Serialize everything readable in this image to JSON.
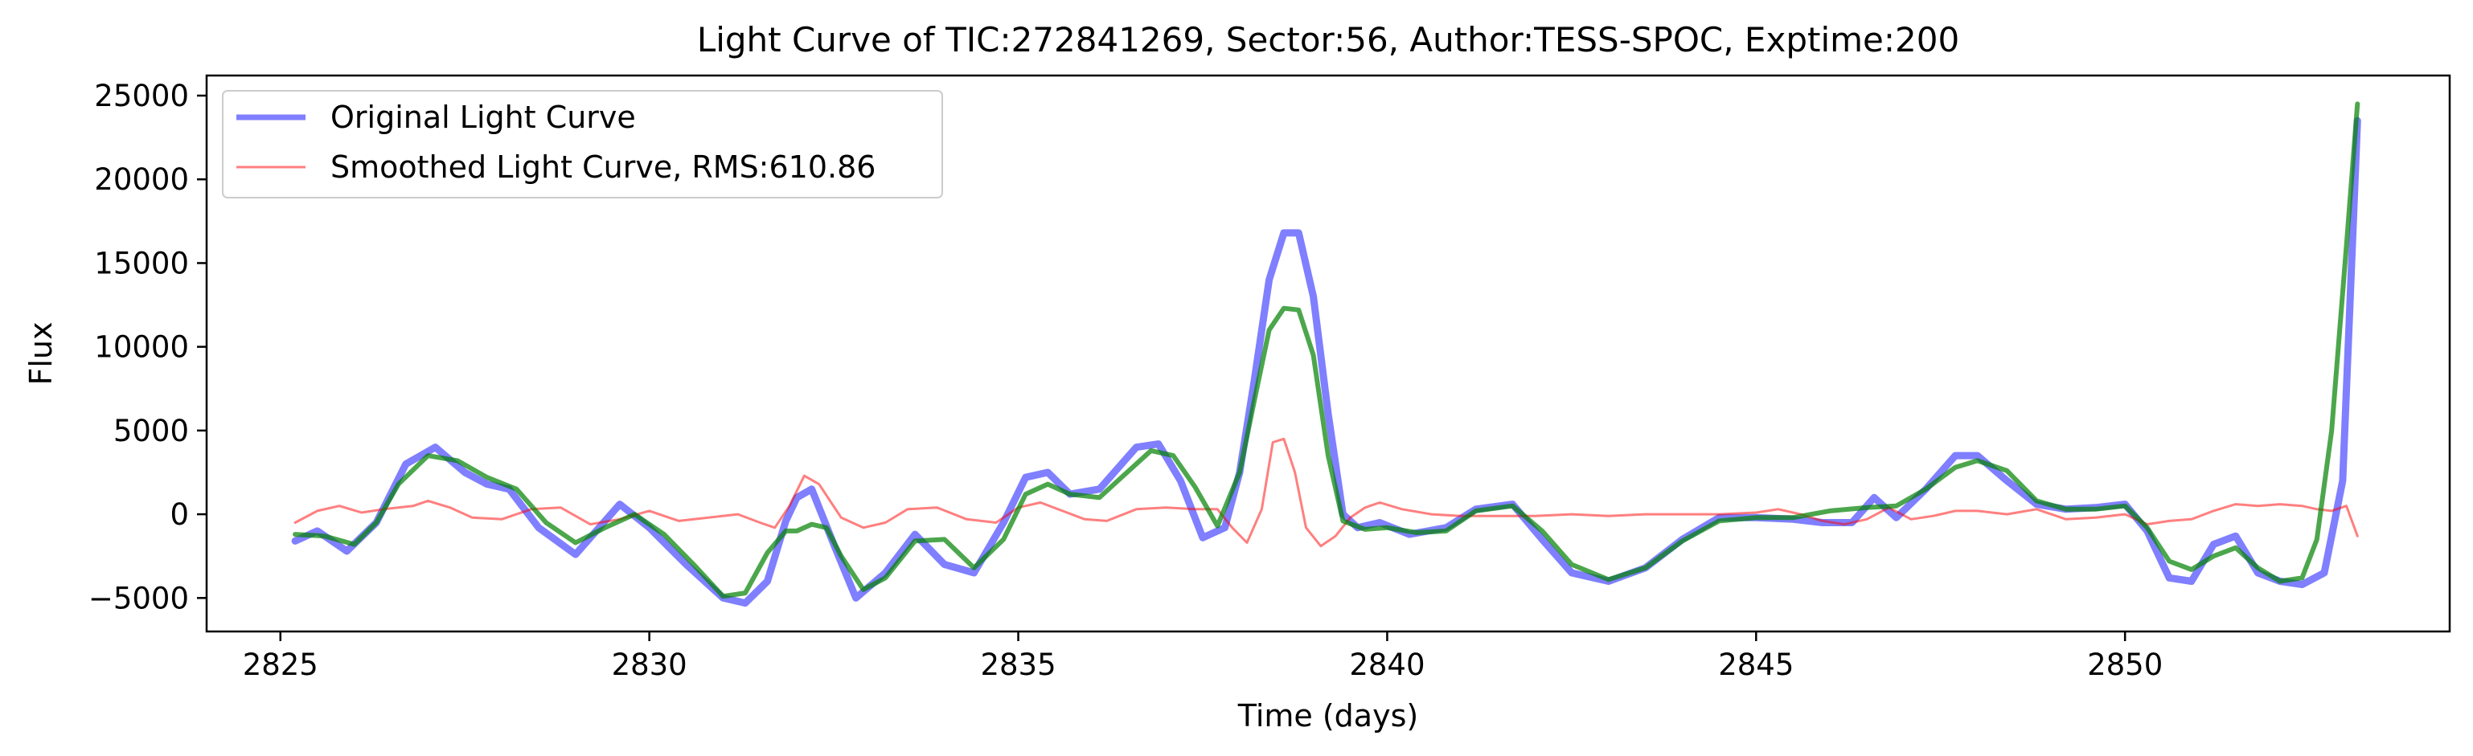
{
  "chart_data": {
    "type": "line",
    "title": "Light Curve of TIC:272841269, Sector:56, Author:TESS-SPOC, Exptime:200",
    "xlabel": "Time (days)",
    "ylabel": "Flux",
    "xlim": [
      2824.0,
      2854.4
    ],
    "ylim": [
      -7000,
      26200
    ],
    "grid": false,
    "legend_position": "top-left",
    "x_ticks": [
      2825,
      2830,
      2835,
      2840,
      2845,
      2850
    ],
    "x_tick_labels": [
      "2825",
      "2830",
      "2835",
      "2840",
      "2845",
      "2850"
    ],
    "y_ticks": [
      -5000,
      0,
      5000,
      10000,
      15000,
      20000,
      25000
    ],
    "y_tick_labels": [
      "−5000",
      "0",
      "5000",
      "10000",
      "15000",
      "20000",
      "25000"
    ],
    "series": [
      {
        "name": "Original Light Curve",
        "color": "#0000ff",
        "alpha": 0.5,
        "x": [
          2825.2,
          2825.5,
          2825.9,
          2826.3,
          2826.7,
          2827.1,
          2827.5,
          2827.8,
          2828.1,
          2828.5,
          2829.0,
          2829.6,
          2830.0,
          2830.5,
          2831.0,
          2831.3,
          2831.6,
          2831.85,
          2832.0,
          2832.2,
          2832.5,
          2832.8,
          2833.2,
          2833.6,
          2834.0,
          2834.4,
          2834.8,
          2835.1,
          2835.4,
          2835.7,
          2836.1,
          2836.6,
          2836.9,
          2837.2,
          2837.5,
          2837.8,
          2838.0,
          2838.2,
          2838.4,
          2838.6,
          2838.8,
          2839.0,
          2839.2,
          2839.4,
          2839.6,
          2839.9,
          2840.3,
          2840.8,
          2841.2,
          2841.7,
          2842.1,
          2842.5,
          2843.0,
          2843.5,
          2844.0,
          2844.5,
          2845.0,
          2845.5,
          2845.9,
          2846.3,
          2846.6,
          2846.9,
          2847.3,
          2847.7,
          2848.0,
          2848.4,
          2848.8,
          2849.2,
          2849.6,
          2850.0,
          2850.3,
          2850.6,
          2850.9,
          2851.2,
          2851.5,
          2851.8,
          2852.1,
          2852.4,
          2852.7,
          2852.95,
          2853.15
        ],
        "values": [
          -1600,
          -1000,
          -2200,
          -500,
          3000,
          4000,
          2500,
          1800,
          1500,
          -800,
          -2400,
          600,
          -800,
          -3000,
          -5000,
          -5300,
          -4000,
          -400,
          1000,
          1500,
          -1800,
          -5000,
          -3500,
          -1200,
          -3000,
          -3500,
          -500,
          2200,
          2500,
          1200,
          1500,
          4000,
          4200,
          2000,
          -1400,
          -800,
          2500,
          8000,
          14000,
          16800,
          16800,
          13000,
          6000,
          0,
          -800,
          -500,
          -1200,
          -800,
          300,
          600,
          -1500,
          -3500,
          -4000,
          -3200,
          -1500,
          -200,
          -200,
          -300,
          -500,
          -500,
          1000,
          -200,
          1500,
          3500,
          3500,
          2000,
          600,
          300,
          400,
          600,
          -1000,
          -3800,
          -4000,
          -1800,
          -1300,
          -3500,
          -4000,
          -4200,
          -3500,
          2000,
          23500
        ]
      },
      {
        "name": "Smoothed Light Curve, RMS:610.86",
        "color": "#ff0000",
        "alpha": 0.5,
        "x": [
          2825.2,
          2825.5,
          2825.8,
          2826.1,
          2826.4,
          2826.8,
          2827.0,
          2827.3,
          2827.6,
          2828.0,
          2828.4,
          2828.8,
          2829.2,
          2829.6,
          2830.0,
          2830.4,
          2830.8,
          2831.2,
          2831.5,
          2831.7,
          2831.9,
          2832.1,
          2832.3,
          2832.6,
          2832.9,
          2833.2,
          2833.5,
          2833.9,
          2834.3,
          2834.7,
          2835.0,
          2835.3,
          2835.6,
          2835.9,
          2836.2,
          2836.6,
          2837.0,
          2837.4,
          2837.7,
          2837.9,
          2838.1,
          2838.3,
          2838.45,
          2838.6,
          2838.75,
          2838.9,
          2839.1,
          2839.3,
          2839.5,
          2839.7,
          2839.9,
          2840.2,
          2840.6,
          2841.0,
          2841.5,
          2842.0,
          2842.5,
          2843.0,
          2843.5,
          2844.0,
          2844.5,
          2845.0,
          2845.3,
          2845.6,
          2845.9,
          2846.2,
          2846.5,
          2846.8,
          2847.1,
          2847.4,
          2847.7,
          2848.0,
          2848.4,
          2848.8,
          2849.2,
          2849.6,
          2850.0,
          2850.3,
          2850.6,
          2850.9,
          2851.2,
          2851.5,
          2851.8,
          2852.1,
          2852.4,
          2852.6,
          2852.8,
          2853.0,
          2853.15
        ],
        "values": [
          -500,
          200,
          500,
          100,
          300,
          500,
          800,
          400,
          -200,
          -300,
          300,
          400,
          -600,
          -300,
          200,
          -400,
          -200,
          0,
          -500,
          -800,
          500,
          2300,
          1800,
          -200,
          -800,
          -500,
          300,
          400,
          -300,
          -500,
          400,
          700,
          200,
          -300,
          -400,
          300,
          400,
          300,
          300,
          -800,
          -1700,
          300,
          4300,
          4500,
          2500,
          -800,
          -1900,
          -1300,
          -200,
          400,
          700,
          300,
          0,
          -100,
          -100,
          -100,
          0,
          -100,
          0,
          0,
          0,
          100,
          300,
          0,
          -400,
          -600,
          -300,
          400,
          -300,
          -100,
          200,
          200,
          0,
          300,
          -300,
          -200,
          0,
          -600,
          -400,
          -300,
          200,
          600,
          500,
          600,
          500,
          300,
          200,
          500,
          -1300
        ]
      },
      {
        "name": "",
        "color": "#008000",
        "alpha": 0.7,
        "x": [
          2825.2,
          2825.6,
          2826.0,
          2826.3,
          2826.6,
          2827.0,
          2827.4,
          2827.8,
          2828.2,
          2828.6,
          2829.0,
          2829.4,
          2829.8,
          2830.2,
          2830.6,
          2831.0,
          2831.3,
          2831.6,
          2831.85,
          2832.0,
          2832.2,
          2832.4,
          2832.6,
          2832.9,
          2833.2,
          2833.6,
          2834.0,
          2834.4,
          2834.8,
          2835.1,
          2835.4,
          2835.7,
          2836.1,
          2836.4,
          2836.8,
          2837.1,
          2837.4,
          2837.7,
          2838.0,
          2838.2,
          2838.4,
          2838.6,
          2838.8,
          2839.0,
          2839.2,
          2839.4,
          2839.7,
          2840.0,
          2840.4,
          2840.8,
          2841.2,
          2841.7,
          2842.1,
          2842.5,
          2843.0,
          2843.5,
          2844.0,
          2844.5,
          2845.0,
          2845.5,
          2846.0,
          2846.5,
          2846.9,
          2847.3,
          2847.7,
          2848.0,
          2848.4,
          2848.8,
          2849.2,
          2849.6,
          2850.0,
          2850.3,
          2850.6,
          2850.9,
          2851.2,
          2851.5,
          2851.8,
          2852.1,
          2852.4,
          2852.6,
          2852.8,
          2853.0,
          2853.15
        ],
        "values": [
          -1200,
          -1300,
          -1800,
          -500,
          1800,
          3500,
          3200,
          2200,
          1500,
          -500,
          -1700,
          -800,
          0,
          -1200,
          -3000,
          -4900,
          -4700,
          -2300,
          -1000,
          -1000,
          -600,
          -800,
          -2500,
          -4500,
          -3800,
          -1600,
          -1500,
          -3200,
          -1500,
          1200,
          1800,
          1200,
          1000,
          2200,
          3800,
          3500,
          1600,
          -700,
          2500,
          6800,
          11000,
          12300,
          12200,
          9500,
          3500,
          -400,
          -900,
          -800,
          -1100,
          -1000,
          200,
          500,
          -1000,
          -3000,
          -3900,
          -3200,
          -1600,
          -400,
          -200,
          -200,
          200,
          400,
          500,
          1500,
          2800,
          3200,
          2600,
          800,
          300,
          300,
          500,
          -800,
          -2800,
          -3300,
          -2500,
          -2000,
          -3200,
          -4000,
          -3800,
          -1500,
          5000,
          16000,
          24500
        ]
      }
    ],
    "legend": [
      {
        "label": "Original Light Curve",
        "color": "#0000ff"
      },
      {
        "label": "Smoothed Light Curve, RMS:610.86",
        "color": "#ff0000"
      }
    ]
  }
}
